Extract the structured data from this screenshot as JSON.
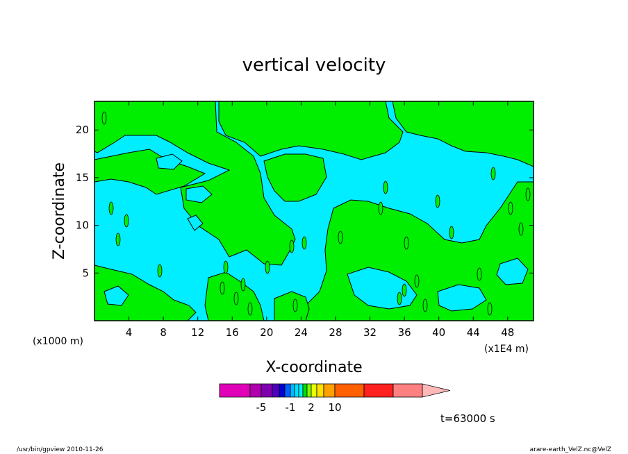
{
  "chart_data": {
    "type": "heatmap",
    "title": "vertical velocity",
    "xlabel": "X-coordinate",
    "ylabel": "Z-coordinate",
    "x_unit_left": "(x1000 m)",
    "x_unit_right": "(x1E4 m)",
    "xlim": [
      0,
      51
    ],
    "ylim": [
      0,
      23
    ],
    "x_ticks": [
      4,
      8,
      12,
      16,
      20,
      24,
      28,
      32,
      36,
      40,
      44,
      48
    ],
    "y_ticks": [
      5,
      10,
      15,
      20
    ],
    "levels": [
      -10,
      -6,
      -5,
      -4,
      -3,
      -2,
      -1,
      -0.5,
      0,
      0.5,
      1,
      2,
      3,
      5,
      10,
      15,
      20
    ],
    "colorbar_labels": [
      {
        "text": "-5",
        "value": -5
      },
      {
        "text": "-1",
        "value": -1
      },
      {
        "text": "2",
        "value": 2
      },
      {
        "text": "10",
        "value": 10
      }
    ],
    "colorbar_colors": [
      "#e000b8",
      "#b000b0",
      "#8000b0",
      "#5000c0",
      "#0000d0",
      "#0060ff",
      "#00b8ff",
      "#00e0ff",
      "#00f0ff",
      "#00e000",
      "#80ff00",
      "#e8ff00",
      "#ffe000",
      "#ffa000",
      "#ff6000",
      "#ff2020",
      "#ff8080",
      "#ffb8b8"
    ],
    "background_color": "#00eeff",
    "positive_color": "#00ee00",
    "annotation": "t=63000 s",
    "footer_left": "/usr/bin/gpview   2010-11-26",
    "footer_right": "arare-earth_VelZ.nc@VelZ"
  }
}
